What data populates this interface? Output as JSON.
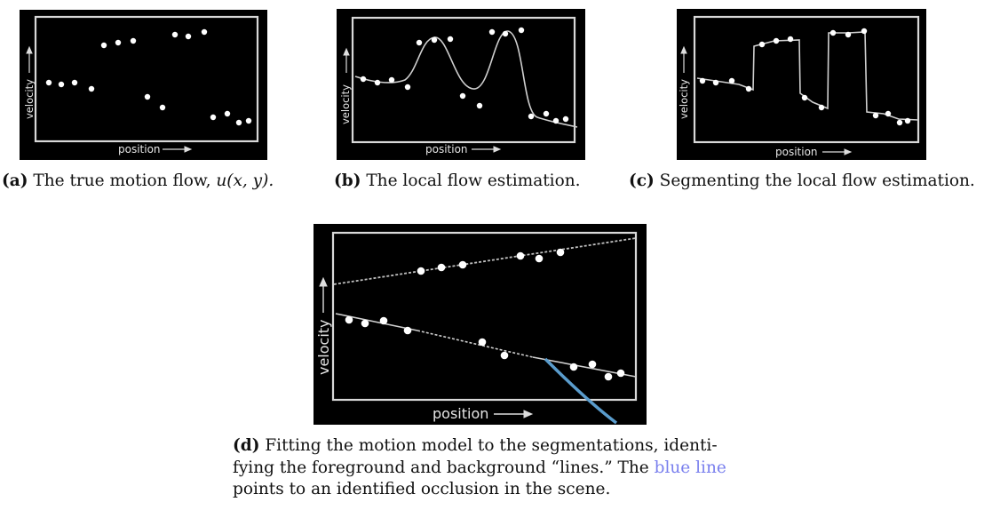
{
  "panels": {
    "a": {
      "caption_label": "(a)",
      "caption_text": "The true motion flow, ",
      "caption_math": "u(x, y).",
      "xlabel": "position",
      "ylabel": "velocity",
      "points": [
        [
          55,
          93
        ],
        [
          69,
          95
        ],
        [
          84,
          93
        ],
        [
          103,
          100
        ],
        [
          117,
          51
        ],
        [
          133,
          48
        ],
        [
          150,
          46
        ],
        [
          166,
          109
        ],
        [
          183,
          121
        ],
        [
          197,
          39
        ],
        [
          212,
          41
        ],
        [
          230,
          36
        ],
        [
          240,
          132
        ],
        [
          256,
          128
        ],
        [
          269,
          138
        ],
        [
          280,
          136
        ]
      ]
    },
    "b": {
      "caption_label": "(b)",
      "caption_text": "The local flow estimation.",
      "xlabel": "position",
      "ylabel": "velocity",
      "points": [
        [
          409,
          89
        ],
        [
          425,
          93
        ],
        [
          441,
          90
        ],
        [
          459,
          98
        ],
        [
          472,
          48
        ],
        [
          489,
          45
        ],
        [
          507,
          44
        ],
        [
          521,
          108
        ],
        [
          540,
          119
        ],
        [
          554,
          36
        ],
        [
          569,
          38
        ],
        [
          587,
          34
        ],
        [
          598,
          131
        ],
        [
          615,
          128
        ],
        [
          626,
          136
        ],
        [
          637,
          134
        ]
      ]
    },
    "c": {
      "caption_label": "(c)",
      "caption_text": "Segmenting the local flow estimation.",
      "xlabel": "position",
      "ylabel": "velocity",
      "points": [
        [
          791,
          91
        ],
        [
          806,
          93
        ],
        [
          824,
          91
        ],
        [
          843,
          100
        ],
        [
          858,
          50
        ],
        [
          874,
          46
        ],
        [
          890,
          44
        ],
        [
          906,
          110
        ],
        [
          925,
          121
        ],
        [
          938,
          37
        ],
        [
          955,
          39
        ],
        [
          973,
          35
        ],
        [
          986,
          130
        ],
        [
          1000,
          128
        ],
        [
          1013,
          138
        ],
        [
          1022,
          136
        ]
      ]
    },
    "d": {
      "caption_label": "(d)",
      "caption_line1": "Fitting the motion model to the segmentations, identi-",
      "caption_line2a": "fying the foreground and background “lines.”  The ",
      "caption_blue": "blue line",
      "caption_line3": "points to an identified occlusion in the scene.",
      "xlabel": "position",
      "ylabel": "velocity",
      "upper_points": [
        [
          474,
          305
        ],
        [
          497,
          301
        ],
        [
          521,
          298
        ],
        [
          586,
          288
        ],
        [
          607,
          291
        ],
        [
          631,
          284
        ]
      ],
      "lower_points": [
        [
          393,
          360
        ],
        [
          411,
          364
        ],
        [
          432,
          361
        ],
        [
          459,
          372
        ],
        [
          543,
          385
        ],
        [
          568,
          400
        ],
        [
          646,
          413
        ],
        [
          667,
          410
        ],
        [
          685,
          424
        ],
        [
          699,
          420
        ]
      ]
    }
  },
  "colors": {
    "occlusion_line": "#5a9ccc",
    "caption_blue": "#7a80ee"
  }
}
